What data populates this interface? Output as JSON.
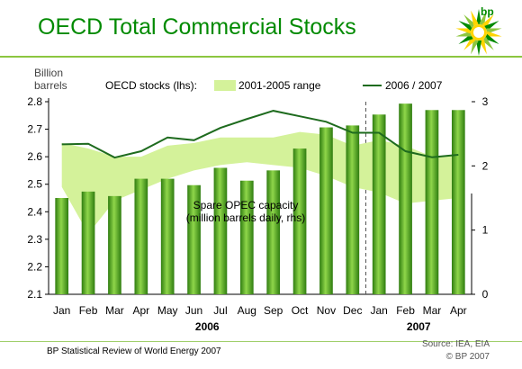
{
  "title": "OECD Total Commercial Stocks",
  "logo_text": "bp",
  "footer": {
    "left": "BP Statistical Review of World Energy 2007",
    "source": "Source: IEA, EIA",
    "copyright": "© BP 2007"
  },
  "colors": {
    "title": "#008a00",
    "range_band": "#d4f29a",
    "line": "#1e6b1e",
    "bar": "#3f9a1a",
    "bar_highlight": "#8fd64a"
  },
  "chart_data": {
    "type": "bar+line+area",
    "y_left_label": [
      "Billion",
      "barrels"
    ],
    "y_left_ticks": [
      "2.1",
      "2.2",
      "2.3",
      "2.4",
      "2.5",
      "2.6",
      "2.7",
      "2.8"
    ],
    "y_left_range": [
      2.1,
      2.8
    ],
    "y_right_ticks": [
      "0",
      "1",
      "2",
      "3"
    ],
    "y_right_range": [
      0,
      3
    ],
    "categories": [
      "Jan",
      "Feb",
      "Mar",
      "Apr",
      "May",
      "Jun",
      "Jul",
      "Aug",
      "Sep",
      "Oct",
      "Nov",
      "Dec",
      "Jan",
      "Feb",
      "Mar",
      "Apr"
    ],
    "year_labels": [
      {
        "label": "2006",
        "start_index": 0,
        "end_index": 11
      },
      {
        "label": "2007",
        "start_index": 12,
        "end_index": 15
      }
    ],
    "divider_after_index": 11,
    "legend": {
      "heading": "OECD stocks (lhs):",
      "range": "2001-2005 range",
      "line": "2006 / 2007"
    },
    "bar_annotation": [
      "Spare OPEC capacity",
      "(million barrels daily, rhs)"
    ],
    "range_band": {
      "name": "2001-2005 range",
      "low": [
        2.49,
        2.32,
        2.44,
        2.48,
        2.52,
        2.55,
        2.57,
        2.58,
        2.57,
        2.56,
        2.53,
        2.49,
        2.47,
        2.43,
        2.44,
        2.45
      ],
      "high": [
        2.65,
        2.63,
        2.6,
        2.6,
        2.64,
        2.65,
        2.67,
        2.67,
        2.67,
        2.69,
        2.68,
        2.64,
        2.66,
        2.64,
        2.6,
        2.61
      ]
    },
    "line_series": {
      "name": "2006 / 2007",
      "values": [
        2.645,
        2.647,
        2.597,
        2.62,
        2.67,
        2.66,
        2.705,
        2.737,
        2.767,
        2.747,
        2.727,
        2.687,
        2.687,
        2.62,
        2.598,
        2.607
      ]
    },
    "bar_series": {
      "name": "Spare OPEC capacity",
      "values": [
        1.5,
        1.6,
        1.53,
        1.8,
        1.8,
        1.7,
        1.97,
        1.77,
        1.93,
        2.27,
        2.6,
        2.63,
        2.8,
        2.97,
        2.87,
        2.87
      ]
    }
  }
}
